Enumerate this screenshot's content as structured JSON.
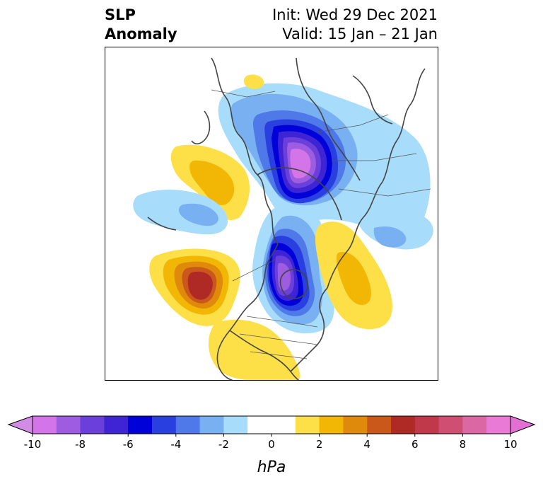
{
  "title": {
    "left_line1": "SLP",
    "left_line2": "Anomaly",
    "right_line1": "Init: Wed 29 Dec 2021",
    "right_line2": "Valid: 15 Jan – 21 Jan"
  },
  "map": {
    "projection": "north-polar-stereographic",
    "variable": "sea level pressure anomaly",
    "features": [
      {
        "name": "low-center-siberia-arctic",
        "sign": "negative",
        "peak_hpa": -10
      },
      {
        "name": "low-center-hudson-bay",
        "sign": "negative",
        "peak_hpa": -10
      },
      {
        "name": "high-center-gulf-of-alaska",
        "sign": "positive",
        "peak_hpa": 6
      },
      {
        "name": "high-north-atlantic",
        "sign": "positive",
        "peak_hpa": 2
      },
      {
        "name": "high-scandinavia",
        "sign": "positive",
        "peak_hpa": 2
      }
    ]
  },
  "colorbar": {
    "unit_label": "hPa",
    "tick_labels": [
      "-10",
      "-8",
      "-6",
      "-4",
      "-2",
      "0",
      "2",
      "4",
      "6",
      "8",
      "10"
    ],
    "levels": [
      -10,
      -9,
      -8,
      -7,
      -6,
      -5,
      -4,
      -3,
      -2,
      -1,
      1,
      2,
      3,
      4,
      5,
      6,
      7,
      8,
      9,
      10
    ],
    "colors": {
      "extend_min": "#d38ce6",
      "bins": [
        "#d375e8",
        "#9e5ce0",
        "#6b3fd9",
        "#3f24d6",
        "#0000d8",
        "#2a3fe0",
        "#4f78e8",
        "#78b0f2",
        "#a8dcfb",
        "#ffffff",
        "#fde048",
        "#f2b705",
        "#e08a0b",
        "#c9581a",
        "#b02a25",
        "#c0394b",
        "#cf4f72",
        "#dc68a3",
        "#e97bd6"
      ],
      "extend_max": "#e46fd4"
    }
  }
}
